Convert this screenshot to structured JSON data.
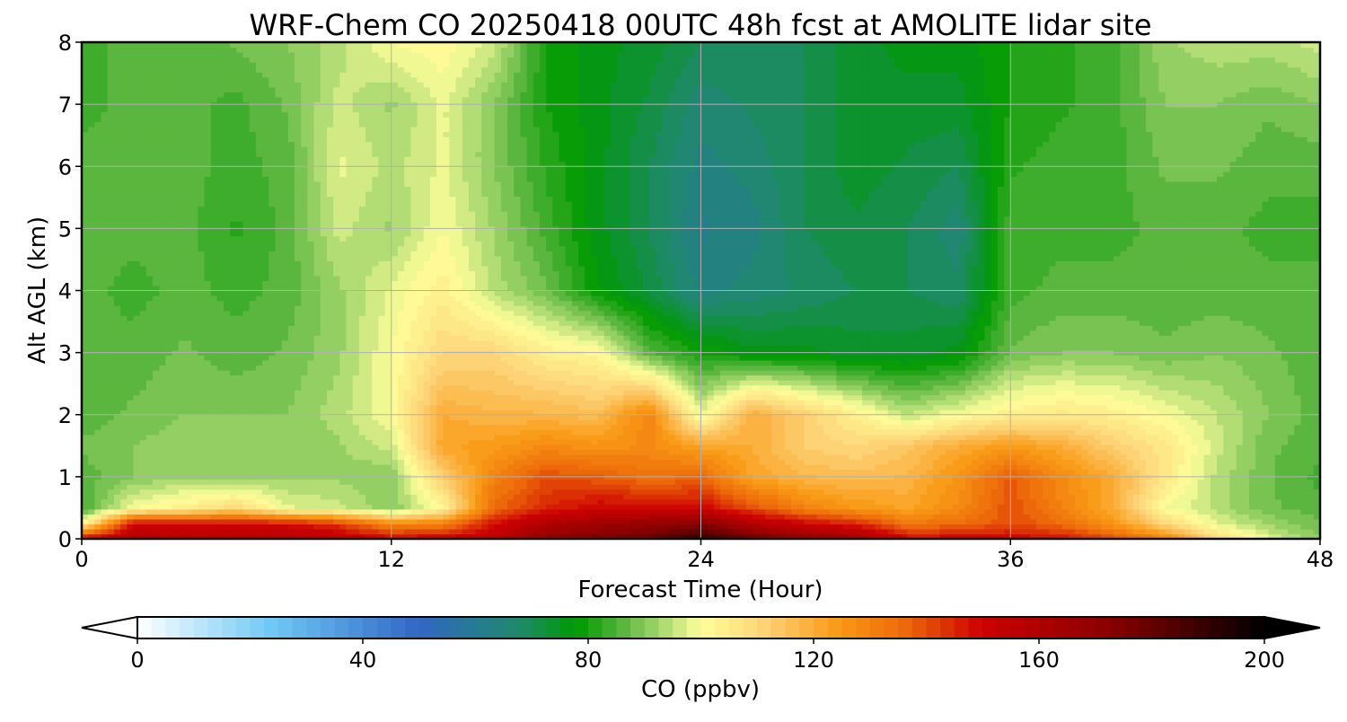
{
  "chart_data": {
    "type": "heatmap",
    "title": "WRF-Chem CO  20250418 00UTC 48h fcst at AMOLITE lidar site",
    "xlabel": "Forecast Time (Hour)",
    "ylabel": "Alt AGL (km)",
    "xlim": [
      0,
      48
    ],
    "ylim": [
      0,
      8
    ],
    "x_ticks": [
      "0",
      "12",
      "24",
      "36",
      "48"
    ],
    "y_ticks": [
      "0",
      "1",
      "2",
      "3",
      "4",
      "5",
      "6",
      "7",
      "8"
    ],
    "grid": true,
    "x": [
      0,
      2,
      4,
      6,
      8,
      10,
      12,
      14,
      16,
      18,
      20,
      22,
      24,
      26,
      28,
      30,
      32,
      34,
      36,
      38,
      40,
      42,
      44,
      46,
      48
    ],
    "y": [
      0,
      0.25,
      0.5,
      1,
      1.5,
      2,
      3,
      4,
      5,
      6,
      7,
      8
    ],
    "z": [
      [
        150,
        160,
        158,
        158,
        158,
        156,
        150,
        152,
        155,
        170,
        175,
        180,
        192,
        180,
        170,
        165,
        150,
        150,
        150,
        148,
        140,
        130,
        110,
        98,
        90
      ],
      [
        100,
        150,
        148,
        148,
        148,
        142,
        128,
        130,
        148,
        160,
        165,
        168,
        172,
        158,
        150,
        145,
        133,
        135,
        140,
        135,
        125,
        110,
        98,
        92,
        88
      ],
      [
        84,
        100,
        104,
        110,
        98,
        96,
        90,
        102,
        136,
        145,
        150,
        150,
        150,
        140,
        130,
        125,
        122,
        128,
        140,
        130,
        120,
        100,
        94,
        88,
        86
      ],
      [
        86,
        90,
        92,
        90,
        92,
        92,
        90,
        112,
        130,
        140,
        138,
        134,
        136,
        122,
        118,
        116,
        118,
        126,
        138,
        128,
        120,
        106,
        94,
        88,
        84
      ],
      [
        88,
        90,
        92,
        90,
        90,
        92,
        96,
        122,
        124,
        128,
        126,
        128,
        122,
        120,
        112,
        110,
        114,
        120,
        124,
        120,
        112,
        106,
        96,
        88,
        86
      ],
      [
        86,
        88,
        90,
        90,
        90,
        94,
        100,
        120,
        118,
        118,
        116,
        130,
        98,
        120,
        112,
        104,
        95,
        100,
        104,
        106,
        104,
        100,
        95,
        90,
        86
      ],
      [
        86,
        86,
        88,
        86,
        88,
        92,
        100,
        110,
        110,
        104,
        102,
        86,
        80,
        76,
        76,
        74,
        74,
        76,
        88,
        90,
        90,
        88,
        90,
        88,
        86
      ],
      [
        86,
        84,
        86,
        84,
        86,
        92,
        98,
        104,
        94,
        88,
        78,
        72,
        64,
        66,
        68,
        70,
        70,
        68,
        84,
        86,
        86,
        86,
        86,
        86,
        86
      ],
      [
        86,
        86,
        86,
        82,
        86,
        96,
        92,
        100,
        92,
        84,
        76,
        70,
        62,
        64,
        70,
        72,
        70,
        66,
        84,
        84,
        84,
        86,
        86,
        84,
        84
      ],
      [
        86,
        86,
        86,
        84,
        86,
        98,
        94,
        98,
        90,
        82,
        76,
        70,
        64,
        66,
        70,
        74,
        72,
        70,
        82,
        84,
        84,
        88,
        88,
        86,
        86
      ],
      [
        84,
        86,
        86,
        84,
        88,
        96,
        92,
        98,
        90,
        80,
        76,
        72,
        66,
        68,
        70,
        74,
        74,
        74,
        80,
        82,
        84,
        90,
        90,
        88,
        90
      ],
      [
        84,
        86,
        86,
        88,
        90,
        94,
        100,
        102,
        96,
        80,
        76,
        74,
        70,
        70,
        70,
        74,
        76,
        76,
        80,
        82,
        84,
        92,
        94,
        94,
        96
      ]
    ],
    "colorbar": {
      "label": "CO  (ppbv)",
      "range": [
        0,
        200
      ],
      "ticks": [
        "0",
        "40",
        "80",
        "120",
        "160",
        "200"
      ],
      "extend": "both",
      "colormap": [
        [
          0,
          "#ffffff"
        ],
        [
          24,
          "#6ec8f5"
        ],
        [
          50,
          "#3166c5"
        ],
        [
          68,
          "#1f8a6a"
        ],
        [
          78,
          "#009a00"
        ],
        [
          86,
          "#58b53d"
        ],
        [
          92,
          "#9dd36a"
        ],
        [
          100,
          "#ffff9b"
        ],
        [
          112,
          "#fdd074"
        ],
        [
          124,
          "#f99b17"
        ],
        [
          136,
          "#ee6a0a"
        ],
        [
          150,
          "#cc0000"
        ],
        [
          172,
          "#8b0000"
        ],
        [
          190,
          "#330000"
        ],
        [
          200,
          "#000000"
        ]
      ]
    }
  }
}
